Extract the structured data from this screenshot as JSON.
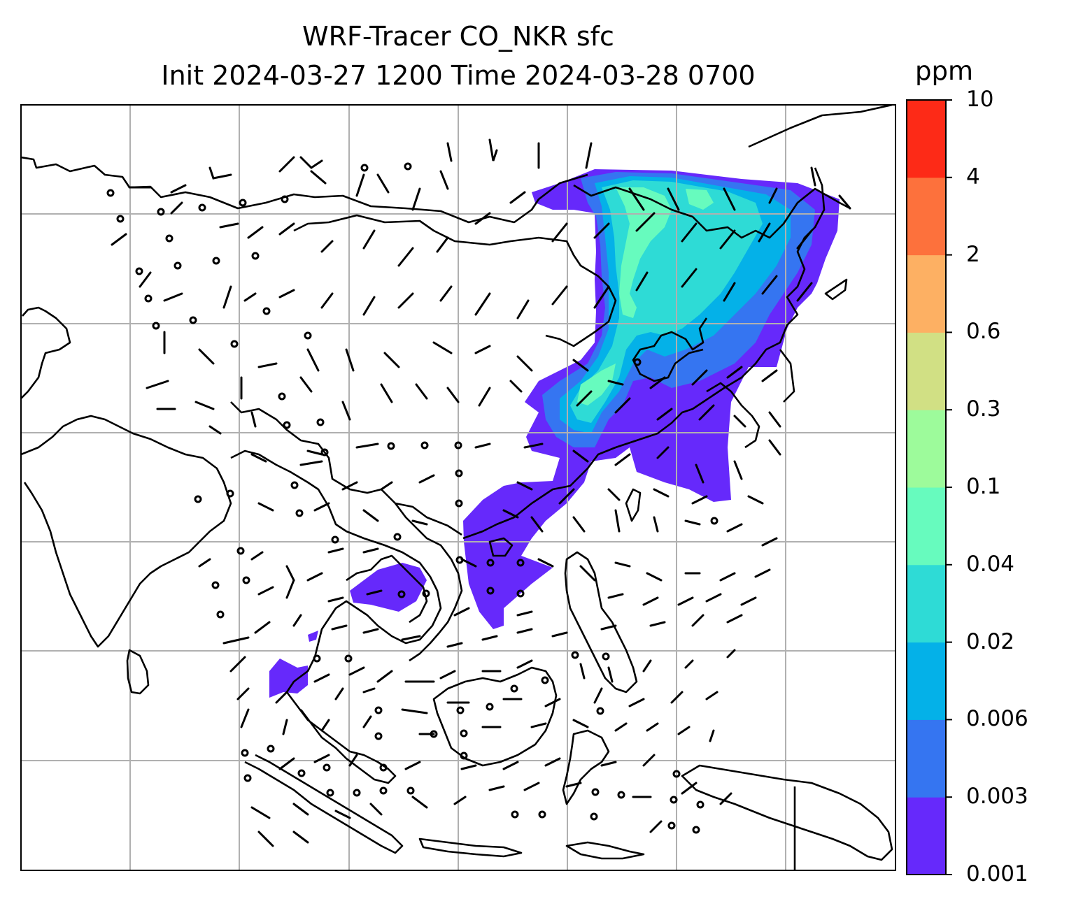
{
  "title": {
    "line1": "WRF-Tracer CO_NKR sfc",
    "line2": "Init 2024-03-27 1200 Time 2024-03-28 0700"
  },
  "colorbar": {
    "units": "ppm",
    "levels": [
      "0.001",
      "0.003",
      "0.006",
      "0.02",
      "0.04",
      "0.1",
      "0.3",
      "0.6",
      "2",
      "4",
      "10"
    ],
    "colors": [
      "#6629fb",
      "#3575f1",
      "#04b1e8",
      "#2edbd6",
      "#67fbbe",
      "#9dfb9b",
      "#d1e084",
      "#fdb063",
      "#fd713c",
      "#fd2a17"
    ]
  },
  "map": {
    "layers": [
      "coastlines",
      "gridlines",
      "wind-barbs",
      "tracer-concentration"
    ],
    "gridline_color": "#b0b0b0",
    "coastline_color": "#000000"
  }
}
